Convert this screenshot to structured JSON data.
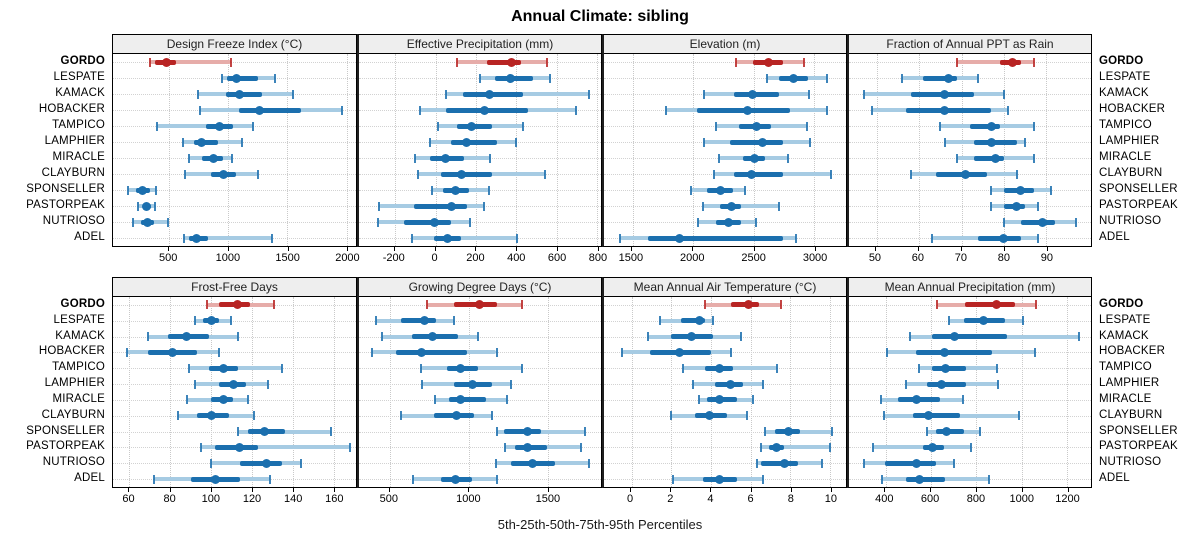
{
  "title": "Annual Climate: sibling",
  "caption": "5th-25th-50th-75th-95th Percentiles",
  "highlight_site": "GORDO",
  "colors": {
    "highlight": "#b82423",
    "highlight_light": "#e6aca9",
    "normal": "#1b6fae",
    "normal_light": "#a6cbe3",
    "header_bg": "#eeeeee",
    "gridline": "#cccccc"
  },
  "sites": [
    "GORDO",
    "LESPATE",
    "KAMACK",
    "HOBACKER",
    "TAMPICO",
    "LAMPHIER",
    "MIRACLE",
    "CLAYBURN",
    "SPONSELLER",
    "PASTORPEAK",
    "NUTRIOSO",
    "ADEL"
  ],
  "chart_data": {
    "type": "boxplot",
    "glyph": "horizontal 5th-25th-50th-75th-95th percentile whiskers, median dot",
    "legend_position": "none",
    "grid": true,
    "percentile_labels": [
      "5th",
      "25th",
      "50th",
      "75th",
      "95th"
    ],
    "panel_rows": [
      [
        0,
        1,
        2,
        3
      ],
      [
        4,
        5,
        6,
        7
      ]
    ],
    "panels": [
      {
        "title": "Design Freeze Index (°C)",
        "domain": [
          30,
          2080
        ],
        "ticks": [
          500,
          1000,
          1500,
          2000
        ],
        "values": [
          [
            340,
            385,
            480,
            565,
            1025
          ],
          [
            950,
            990,
            1075,
            1250,
            1400
          ],
          [
            745,
            985,
            1100,
            1290,
            1545
          ],
          [
            760,
            1095,
            1270,
            1615,
            1960
          ],
          [
            400,
            815,
            925,
            1040,
            1215
          ],
          [
            620,
            715,
            780,
            915,
            1115
          ],
          [
            670,
            785,
            875,
            955,
            1035
          ],
          [
            640,
            855,
            965,
            1065,
            1250
          ],
          [
            155,
            225,
            280,
            340,
            395
          ],
          [
            240,
            280,
            315,
            350,
            385
          ],
          [
            195,
            265,
            325,
            380,
            490
          ],
          [
            630,
            675,
            735,
            830,
            1375
          ]
        ]
      },
      {
        "title": "Effective Precipitation (mm)",
        "domain": [
          -380,
          820
        ],
        "ticks": [
          -200,
          0,
          200,
          400,
          600,
          800
        ],
        "values": [
          [
            105,
            255,
            375,
            425,
            550
          ],
          [
            220,
            295,
            370,
            485,
            565
          ],
          [
            50,
            135,
            265,
            435,
            760
          ],
          [
            -80,
            50,
            240,
            460,
            695
          ],
          [
            10,
            105,
            180,
            280,
            435
          ],
          [
            -30,
            75,
            155,
            305,
            400
          ],
          [
            -100,
            -30,
            50,
            140,
            270
          ],
          [
            -85,
            25,
            130,
            280,
            540
          ],
          [
            -20,
            35,
            100,
            165,
            265
          ],
          [
            -280,
            -105,
            80,
            155,
            240
          ],
          [
            -285,
            -155,
            -5,
            75,
            170
          ],
          [
            -115,
            -10,
            60,
            125,
            405
          ]
        ]
      },
      {
        "title": "Elevation (m)",
        "domain": [
          1265,
          3260
        ],
        "ticks": [
          1500,
          2000,
          2500,
          3000
        ],
        "values": [
          [
            2355,
            2490,
            2620,
            2740,
            2910
          ],
          [
            2605,
            2710,
            2830,
            2950,
            3100
          ],
          [
            2090,
            2335,
            2490,
            2710,
            2955
          ],
          [
            1780,
            2035,
            2445,
            2800,
            3100
          ],
          [
            2190,
            2375,
            2525,
            2640,
            2935
          ],
          [
            2090,
            2300,
            2570,
            2740,
            2965
          ],
          [
            2215,
            2410,
            2505,
            2590,
            2785
          ],
          [
            2170,
            2340,
            2485,
            2740,
            3140
          ],
          [
            1980,
            2110,
            2225,
            2330,
            2430
          ],
          [
            2080,
            2220,
            2315,
            2395,
            2710
          ],
          [
            2040,
            2190,
            2290,
            2395,
            2515
          ],
          [
            1400,
            1630,
            1890,
            2740,
            2845
          ]
        ]
      },
      {
        "title": "Fraction of Annual PPT as Rain",
        "domain": [
          43.5,
          100.5
        ],
        "ticks": [
          50,
          60,
          70,
          80,
          90
        ],
        "values": [
          [
            69,
            79,
            82,
            84,
            87
          ],
          [
            56,
            61,
            67,
            69,
            74
          ],
          [
            47,
            58,
            66,
            73,
            80
          ],
          [
            49,
            57,
            66,
            77,
            81
          ],
          [
            65,
            72,
            77,
            79,
            87
          ],
          [
            66,
            73,
            77,
            83,
            85
          ],
          [
            69,
            73,
            78,
            80,
            87
          ],
          [
            58,
            64,
            71,
            76,
            83
          ],
          [
            77,
            80,
            84,
            87,
            91
          ],
          [
            77,
            80,
            83,
            85,
            88
          ],
          [
            80,
            84,
            89,
            92,
            97
          ],
          [
            63,
            74,
            80,
            84,
            88
          ]
        ]
      },
      {
        "title": "Frost-Free Days",
        "domain": [
          52,
          171
        ],
        "ticks": [
          60,
          80,
          100,
          120,
          140,
          160
        ],
        "values": [
          [
            98,
            104,
            113,
            119,
            131
          ],
          [
            92,
            96,
            100,
            104,
            110
          ],
          [
            69,
            79,
            88,
            99,
            113
          ],
          [
            59,
            69,
            81,
            93,
            104
          ],
          [
            89,
            99,
            106,
            113,
            135
          ],
          [
            92,
            104,
            111,
            117,
            128
          ],
          [
            88,
            100,
            106,
            111,
            118
          ],
          [
            84,
            93,
            100,
            109,
            121
          ],
          [
            113,
            118,
            126,
            136,
            159
          ],
          [
            95,
            102,
            114,
            123,
            168
          ],
          [
            100,
            114,
            127,
            135,
            144
          ],
          [
            72,
            90,
            102,
            114,
            129
          ]
        ]
      },
      {
        "title": "Growing Degree Days (°C)",
        "domain": [
          300,
          1840
        ],
        "ticks": [
          500,
          1000,
          1500
        ],
        "values": [
          [
            730,
            905,
            1065,
            1180,
            1335
          ],
          [
            410,
            570,
            715,
            790,
            905
          ],
          [
            445,
            640,
            765,
            930,
            1055
          ],
          [
            385,
            535,
            700,
            990,
            1175
          ],
          [
            695,
            860,
            945,
            1055,
            1335
          ],
          [
            700,
            905,
            1025,
            1145,
            1265
          ],
          [
            785,
            870,
            945,
            1110,
            1240
          ],
          [
            565,
            775,
            920,
            1030,
            1145
          ],
          [
            1175,
            1220,
            1370,
            1460,
            1740
          ],
          [
            1230,
            1295,
            1370,
            1495,
            1710
          ],
          [
            1170,
            1265,
            1405,
            1545,
            1765
          ],
          [
            645,
            820,
            915,
            1020,
            1180
          ]
        ]
      },
      {
        "title": "Mean Annual Air Temperature (°C)",
        "domain": [
          -1.4,
          10.8
        ],
        "ticks": [
          0,
          2,
          4,
          6,
          8,
          10
        ],
        "values": [
          [
            3.7,
            5.0,
            5.9,
            6.4,
            7.5
          ],
          [
            1.4,
            2.5,
            3.4,
            3.7,
            4.1
          ],
          [
            0.8,
            2.0,
            3.0,
            4.1,
            5.5
          ],
          [
            -0.5,
            0.9,
            2.4,
            4.0,
            5.0
          ],
          [
            2.6,
            3.7,
            4.4,
            5.1,
            7.3
          ],
          [
            3.1,
            4.2,
            5.0,
            5.6,
            6.6
          ],
          [
            3.4,
            3.8,
            4.4,
            5.3,
            6.1
          ],
          [
            2.0,
            3.2,
            3.9,
            4.8,
            5.8
          ],
          [
            6.7,
            7.2,
            7.9,
            8.5,
            10.1
          ],
          [
            6.5,
            6.9,
            7.3,
            7.7,
            10.0
          ],
          [
            6.3,
            6.5,
            7.7,
            8.4,
            9.6
          ],
          [
            2.1,
            3.6,
            4.4,
            5.3,
            6.6
          ]
        ]
      },
      {
        "title": "Mean Annual Precipitation (mm)",
        "domain": [
          237,
          1307
        ],
        "ticks": [
          400,
          600,
          800,
          1000,
          1200
        ],
        "values": [
          [
            625,
            750,
            890,
            970,
            1065
          ],
          [
            680,
            745,
            830,
            925,
            1005
          ],
          [
            505,
            605,
            705,
            935,
            1255
          ],
          [
            405,
            535,
            660,
            870,
            1060
          ],
          [
            545,
            605,
            665,
            755,
            890
          ],
          [
            490,
            580,
            645,
            755,
            895
          ],
          [
            380,
            455,
            535,
            640,
            740
          ],
          [
            390,
            520,
            590,
            730,
            990
          ],
          [
            580,
            620,
            670,
            745,
            815
          ],
          [
            345,
            565,
            605,
            655,
            775
          ],
          [
            305,
            395,
            535,
            620,
            700
          ],
          [
            385,
            490,
            550,
            660,
            855
          ]
        ]
      }
    ]
  }
}
